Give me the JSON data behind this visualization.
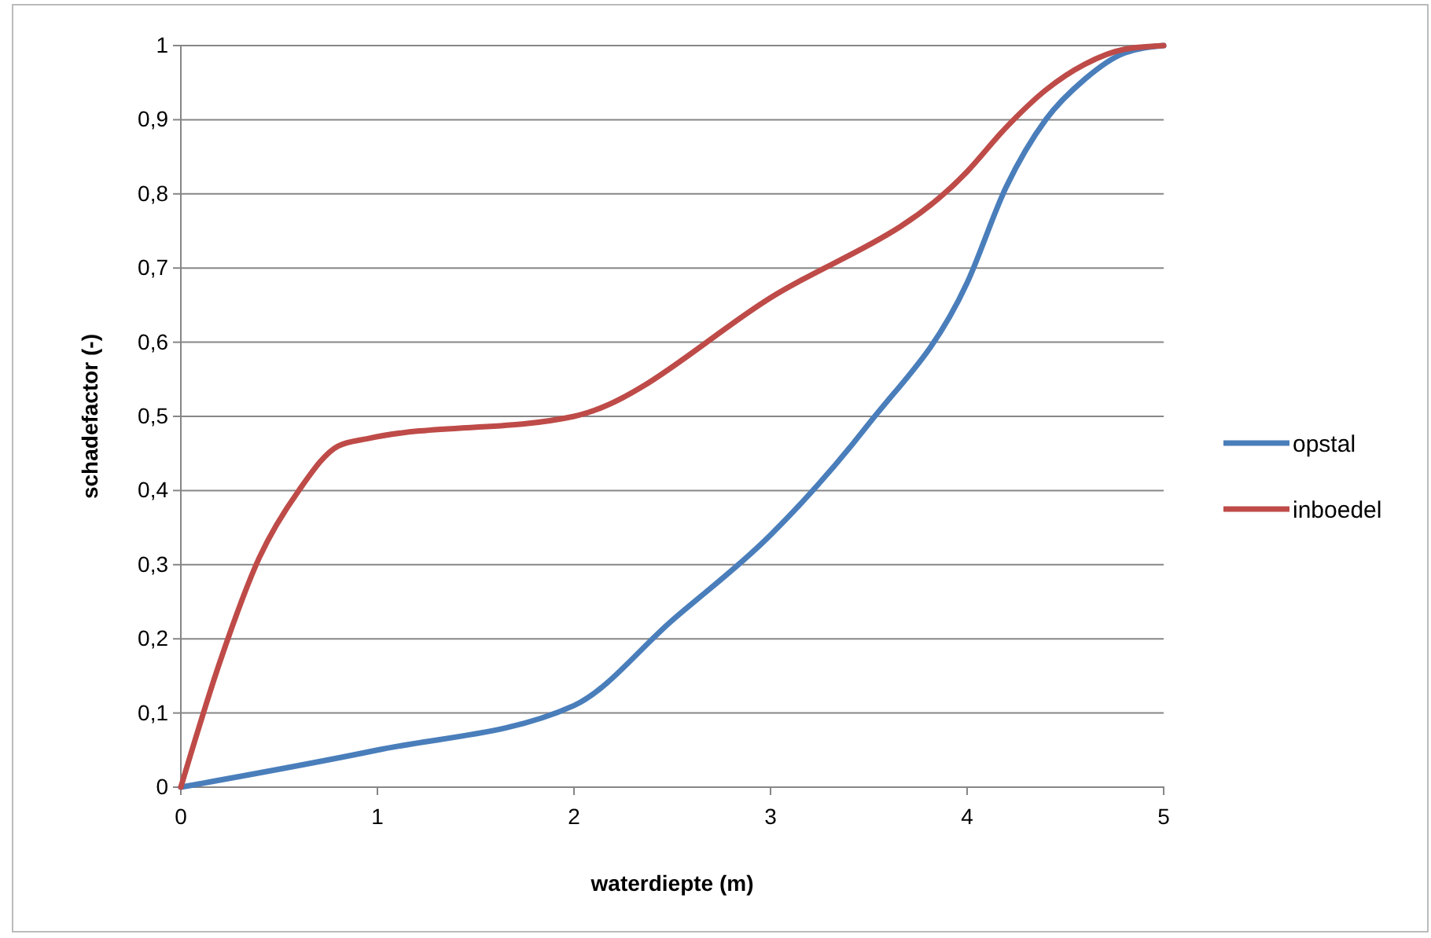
{
  "chart_data": {
    "type": "line",
    "xlabel": "waterdiepte (m)",
    "ylabel": "schadefactor (-)",
    "xlim": [
      0,
      5
    ],
    "xticks": [
      0,
      1,
      2,
      3,
      4,
      5
    ],
    "ylim": [
      0,
      1
    ],
    "yticks": [
      0,
      {
        "value": 0.1,
        "label": "0,1"
      },
      {
        "value": 0.2,
        "label": "0,2"
      },
      {
        "value": 0.3,
        "label": "0,3"
      },
      {
        "value": 0.4,
        "label": "0,4"
      },
      {
        "value": 0.5,
        "label": "0,5"
      },
      {
        "value": 0.6,
        "label": "0,6"
      },
      {
        "value": 0.7,
        "label": "0,7"
      },
      {
        "value": 0.8,
        "label": "0,8"
      },
      {
        "value": 0.9,
        "label": "0,9"
      },
      1
    ],
    "grid": "y",
    "legend": "right",
    "marker": "none",
    "line_style": "solid",
    "series": [
      {
        "name": "opstal",
        "color": "#4a7ebb",
        "x": [
          0,
          1,
          2,
          2.5,
          3,
          3.5,
          4,
          4.2,
          4.4,
          4.6,
          4.8,
          5
        ],
        "values": [
          0,
          0.05,
          0.11,
          0.225,
          0.34,
          0.49,
          0.68,
          0.81,
          0.9,
          0.955,
          0.99,
          1
        ]
      },
      {
        "name": "inboedel",
        "color": "#be4b48",
        "x": [
          0,
          0.2,
          0.4,
          0.6,
          0.8,
          0.95,
          2,
          3,
          4,
          4.2,
          4.4,
          4.6,
          4.8,
          5
        ],
        "values": [
          0,
          0.17,
          0.31,
          0.4,
          0.46,
          0.47,
          0.5,
          0.66,
          0.83,
          0.89,
          0.94,
          0.975,
          0.995,
          1
        ]
      }
    ]
  }
}
